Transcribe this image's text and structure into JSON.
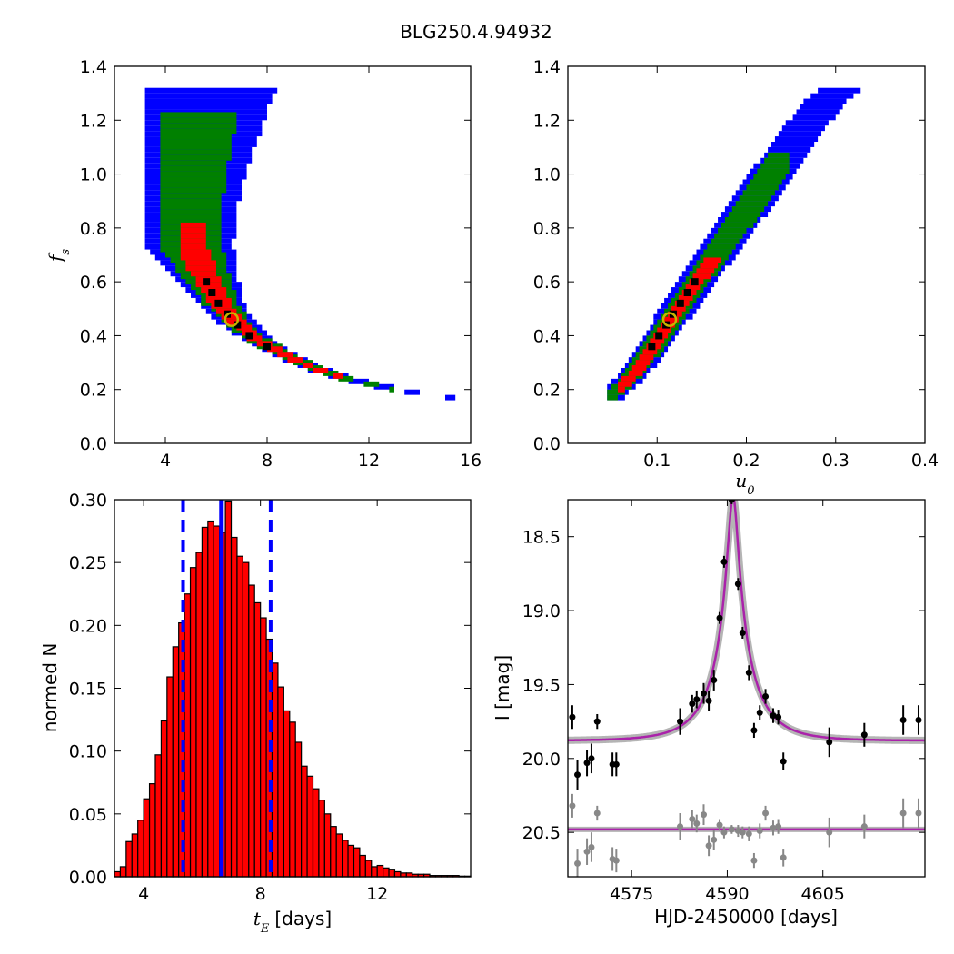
{
  "title": "BLG250.4.94932",
  "colors": {
    "sigma3": "#0000ff",
    "sigma2": "#008000",
    "sigma1": "#ff0000",
    "best_cell": "#000000",
    "best_marker": "#c8b400",
    "hist_bar": "#ff0000",
    "vline": "#0000ff",
    "model_curve": "#aa22aa",
    "model_band": "#777777",
    "data_points": "#000000",
    "residual_points": "#888888"
  },
  "chart_data": [
    {
      "id": "fs_vs_tE",
      "type": "heatmap",
      "title": "",
      "xlabel": "",
      "ylabel": "f_s",
      "xlim": [
        2,
        16
      ],
      "ylim": [
        0.0,
        1.4
      ],
      "xticks": [
        "4",
        "8",
        "12",
        "16"
      ],
      "yticks": [
        "0.0",
        "0.2",
        "0.4",
        "0.6",
        "0.8",
        "1.0",
        "1.2",
        "1.4"
      ],
      "best_fit": {
        "x": 6.6,
        "y": 0.46
      },
      "confidence_regions": [
        {
          "level": "3-sigma",
          "color": "blue",
          "x_range": [
            3.3,
            15.2
          ],
          "y_range": [
            0.17,
            1.34
          ]
        },
        {
          "level": "2-sigma",
          "color": "green",
          "x_range": [
            3.7,
            12.8
          ],
          "y_range": [
            0.2,
            1.22
          ]
        },
        {
          "level": "1-sigma",
          "color": "red",
          "x_range": [
            4.5,
            10.8
          ],
          "y_range": [
            0.25,
            0.82
          ]
        }
      ],
      "curve_samples": [
        [
          3.4,
          1.33
        ],
        [
          3.8,
          1.16
        ],
        [
          4.3,
          0.92
        ],
        [
          4.8,
          0.74
        ],
        [
          5.5,
          0.62
        ],
        [
          6.0,
          0.53
        ],
        [
          6.6,
          0.46
        ],
        [
          7.3,
          0.4
        ],
        [
          8.0,
          0.36
        ],
        [
          9.0,
          0.31
        ],
        [
          10.0,
          0.27
        ],
        [
          11.0,
          0.24
        ],
        [
          12.0,
          0.22
        ],
        [
          13.0,
          0.2
        ],
        [
          14.0,
          0.185
        ],
        [
          15.2,
          0.17
        ]
      ]
    },
    {
      "id": "fs_vs_u0",
      "type": "heatmap",
      "title": "",
      "xlabel": "u_0",
      "ylabel": "",
      "xlim": [
        0.0,
        0.4
      ],
      "ylim": [
        0.0,
        1.4
      ],
      "xticks": [
        "0.1",
        "0.2",
        "0.3",
        "0.4"
      ],
      "yticks": [
        "0.0",
        "0.2",
        "0.4",
        "0.6",
        "0.8",
        "1.0",
        "1.2",
        "1.4"
      ],
      "best_fit": {
        "x": 0.114,
        "y": 0.46
      },
      "confidence_regions": [
        {
          "level": "3-sigma",
          "color": "blue",
          "x_range": [
            0.045,
            0.335
          ],
          "y_range": [
            0.17,
            1.34
          ]
        },
        {
          "level": "2-sigma",
          "color": "green",
          "x_range": [
            0.045,
            0.245
          ],
          "y_range": [
            0.17,
            1.07
          ]
        },
        {
          "level": "1-sigma",
          "color": "red",
          "x_range": [
            0.055,
            0.17
          ],
          "y_range": [
            0.2,
            0.68
          ]
        }
      ],
      "curve_samples": [
        [
          0.045,
          0.17
        ],
        [
          0.07,
          0.25
        ],
        [
          0.09,
          0.34
        ],
        [
          0.114,
          0.46
        ],
        [
          0.14,
          0.59
        ],
        [
          0.17,
          0.73
        ],
        [
          0.2,
          0.87
        ],
        [
          0.23,
          1.02
        ],
        [
          0.26,
          1.16
        ],
        [
          0.29,
          1.28
        ],
        [
          0.31,
          1.33
        ]
      ]
    },
    {
      "id": "tE_histogram",
      "type": "bar",
      "title": "",
      "xlabel": "t_E [days]",
      "ylabel": "normed N",
      "xlim": [
        3.0,
        15.2
      ],
      "ylim": [
        0.0,
        0.3
      ],
      "xticks": [
        "4",
        "8",
        "12"
      ],
      "yticks": [
        "0.00",
        "0.05",
        "0.10",
        "0.15",
        "0.20",
        "0.25",
        "0.30"
      ],
      "bin_start": 3.0,
      "bin_width": 0.2,
      "values": [
        0.004,
        0.008,
        0.028,
        0.034,
        0.045,
        0.062,
        0.074,
        0.097,
        0.124,
        0.159,
        0.183,
        0.202,
        0.225,
        0.246,
        0.258,
        0.278,
        0.283,
        0.279,
        0.274,
        0.299,
        0.27,
        0.255,
        0.25,
        0.232,
        0.218,
        0.206,
        0.189,
        0.17,
        0.151,
        0.132,
        0.123,
        0.107,
        0.088,
        0.08,
        0.07,
        0.061,
        0.05,
        0.04,
        0.034,
        0.029,
        0.025,
        0.023,
        0.017,
        0.013,
        0.008,
        0.009,
        0.007,
        0.006,
        0.004,
        0.003,
        0.003,
        0.002,
        0.002,
        0.002,
        0.001,
        0.001,
        0.001,
        0.001,
        0.001,
        0.0005,
        0.0005
      ],
      "median_line": 6.65,
      "interval_lines": [
        5.35,
        8.35
      ]
    },
    {
      "id": "light_curve",
      "type": "scatter",
      "title": "",
      "xlabel": "HJD-2450000 [days]",
      "ylabel": "I [mag]",
      "xlim": [
        4565,
        4621
      ],
      "ylim": [
        20.8,
        18.25
      ],
      "xticks": [
        "4575",
        "4590",
        "4605"
      ],
      "yticks": [
        "18.5",
        "19.0",
        "19.5",
        "20.0",
        "20.5"
      ],
      "model": {
        "t0": 4590.9,
        "tE": 6.6,
        "u0": 0.114,
        "fs": 0.46,
        "I_base": 19.88
      },
      "residual_baseline": 20.48,
      "data": [
        {
          "x": 4565.7,
          "y": 19.72,
          "err": 0.08
        },
        {
          "x": 4566.5,
          "y": 20.11,
          "err": 0.1
        },
        {
          "x": 4568.0,
          "y": 20.03,
          "err": 0.09
        },
        {
          "x": 4568.7,
          "y": 20.0,
          "err": 0.1
        },
        {
          "x": 4569.6,
          "y": 19.75,
          "err": 0.05
        },
        {
          "x": 4572.0,
          "y": 20.04,
          "err": 0.08
        },
        {
          "x": 4572.6,
          "y": 20.04,
          "err": 0.08
        },
        {
          "x": 4582.6,
          "y": 19.75,
          "err": 0.09
        },
        {
          "x": 4584.5,
          "y": 19.63,
          "err": 0.06
        },
        {
          "x": 4585.2,
          "y": 19.6,
          "err": 0.06
        },
        {
          "x": 4586.3,
          "y": 19.56,
          "err": 0.07
        },
        {
          "x": 4587.1,
          "y": 19.61,
          "err": 0.07
        },
        {
          "x": 4587.9,
          "y": 19.47,
          "err": 0.07
        },
        {
          "x": 4588.8,
          "y": 19.05,
          "err": 0.04
        },
        {
          "x": 4589.5,
          "y": 18.67,
          "err": 0.04
        },
        {
          "x": 4590.7,
          "y": 18.25,
          "err": 0.03
        },
        {
          "x": 4591.7,
          "y": 18.82,
          "err": 0.04
        },
        {
          "x": 4592.4,
          "y": 19.15,
          "err": 0.04
        },
        {
          "x": 4593.4,
          "y": 19.42,
          "err": 0.05
        },
        {
          "x": 4594.2,
          "y": 19.81,
          "err": 0.05
        },
        {
          "x": 4595.1,
          "y": 19.69,
          "err": 0.05
        },
        {
          "x": 4596.0,
          "y": 19.58,
          "err": 0.05
        },
        {
          "x": 4597.2,
          "y": 19.71,
          "err": 0.05
        },
        {
          "x": 4598.0,
          "y": 19.72,
          "err": 0.05
        },
        {
          "x": 4598.8,
          "y": 20.02,
          "err": 0.06
        },
        {
          "x": 4606.0,
          "y": 19.89,
          "err": 0.1
        },
        {
          "x": 4611.5,
          "y": 19.84,
          "err": 0.08
        },
        {
          "x": 4617.6,
          "y": 19.74,
          "err": 0.1
        },
        {
          "x": 4620.0,
          "y": 19.74,
          "err": 0.1
        }
      ],
      "residuals": [
        {
          "x": 4565.7,
          "y": 20.32,
          "err": 0.08
        },
        {
          "x": 4566.5,
          "y": 20.71,
          "err": 0.1
        },
        {
          "x": 4568.0,
          "y": 20.63,
          "err": 0.09
        },
        {
          "x": 4568.7,
          "y": 20.6,
          "err": 0.1
        },
        {
          "x": 4569.6,
          "y": 20.37,
          "err": 0.05
        },
        {
          "x": 4572.0,
          "y": 20.68,
          "err": 0.08
        },
        {
          "x": 4572.6,
          "y": 20.69,
          "err": 0.08
        },
        {
          "x": 4582.6,
          "y": 20.46,
          "err": 0.09
        },
        {
          "x": 4584.5,
          "y": 20.41,
          "err": 0.06
        },
        {
          "x": 4585.2,
          "y": 20.44,
          "err": 0.06
        },
        {
          "x": 4586.3,
          "y": 20.38,
          "err": 0.07
        },
        {
          "x": 4587.1,
          "y": 20.59,
          "err": 0.07
        },
        {
          "x": 4587.9,
          "y": 20.55,
          "err": 0.07
        },
        {
          "x": 4588.8,
          "y": 20.45,
          "err": 0.04
        },
        {
          "x": 4589.5,
          "y": 20.5,
          "err": 0.04
        },
        {
          "x": 4590.7,
          "y": 20.48,
          "err": 0.03
        },
        {
          "x": 4591.7,
          "y": 20.49,
          "err": 0.04
        },
        {
          "x": 4592.4,
          "y": 20.5,
          "err": 0.04
        },
        {
          "x": 4593.4,
          "y": 20.51,
          "err": 0.05
        },
        {
          "x": 4594.2,
          "y": 20.69,
          "err": 0.05
        },
        {
          "x": 4595.1,
          "y": 20.49,
          "err": 0.05
        },
        {
          "x": 4596.0,
          "y": 20.37,
          "err": 0.05
        },
        {
          "x": 4597.2,
          "y": 20.47,
          "err": 0.05
        },
        {
          "x": 4598.0,
          "y": 20.46,
          "err": 0.05
        },
        {
          "x": 4598.8,
          "y": 20.67,
          "err": 0.06
        },
        {
          "x": 4606.0,
          "y": 20.5,
          "err": 0.1
        },
        {
          "x": 4611.5,
          "y": 20.46,
          "err": 0.08
        },
        {
          "x": 4617.6,
          "y": 20.37,
          "err": 0.1
        },
        {
          "x": 4620.0,
          "y": 20.37,
          "err": 0.1
        }
      ]
    }
  ]
}
